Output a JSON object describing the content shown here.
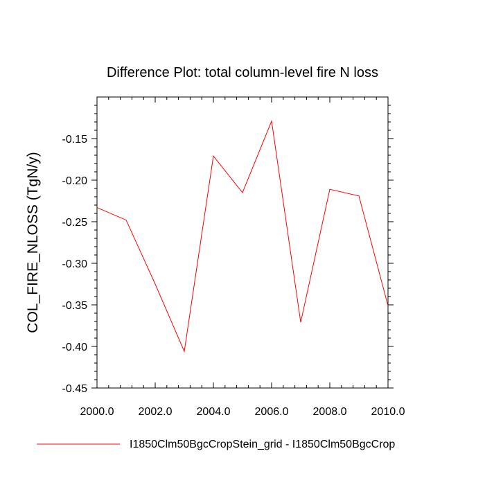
{
  "chart_data": {
    "type": "line",
    "title": "Difference Plot: total column-level fire N loss",
    "xlabel": "",
    "ylabel": "COL_FIRE_NLOSS  (TgN/y)",
    "xlim": [
      2000,
      2010
    ],
    "ylim": [
      -0.45,
      -0.1
    ],
    "x_ticks": [
      2000,
      2002,
      2004,
      2006,
      2008,
      2010
    ],
    "x_tick_labels": [
      "2000.0",
      "2002.0",
      "2004.0",
      "2006.0",
      "2008.0",
      "2010.0"
    ],
    "y_ticks": [
      -0.45,
      -0.4,
      -0.35,
      -0.3,
      -0.25,
      -0.2,
      -0.15
    ],
    "y_tick_labels": [
      "-0.45",
      "-0.40",
      "-0.35",
      "-0.30",
      "-0.25",
      "-0.20",
      "-0.15"
    ],
    "grid": false,
    "legend_position": "bottom",
    "series": [
      {
        "name": "I1850Clm50BgcCropStein_grid - I1850Clm50BgcCrop",
        "color": "#ff0000",
        "x": [
          2000,
          2001,
          2002,
          2003,
          2004,
          2005,
          2006,
          2007,
          2008,
          2009,
          2010
        ],
        "y": [
          -0.233,
          -0.248,
          -0.325,
          -0.406,
          -0.171,
          -0.215,
          -0.129,
          -0.371,
          -0.211,
          -0.219,
          -0.351
        ]
      }
    ]
  }
}
